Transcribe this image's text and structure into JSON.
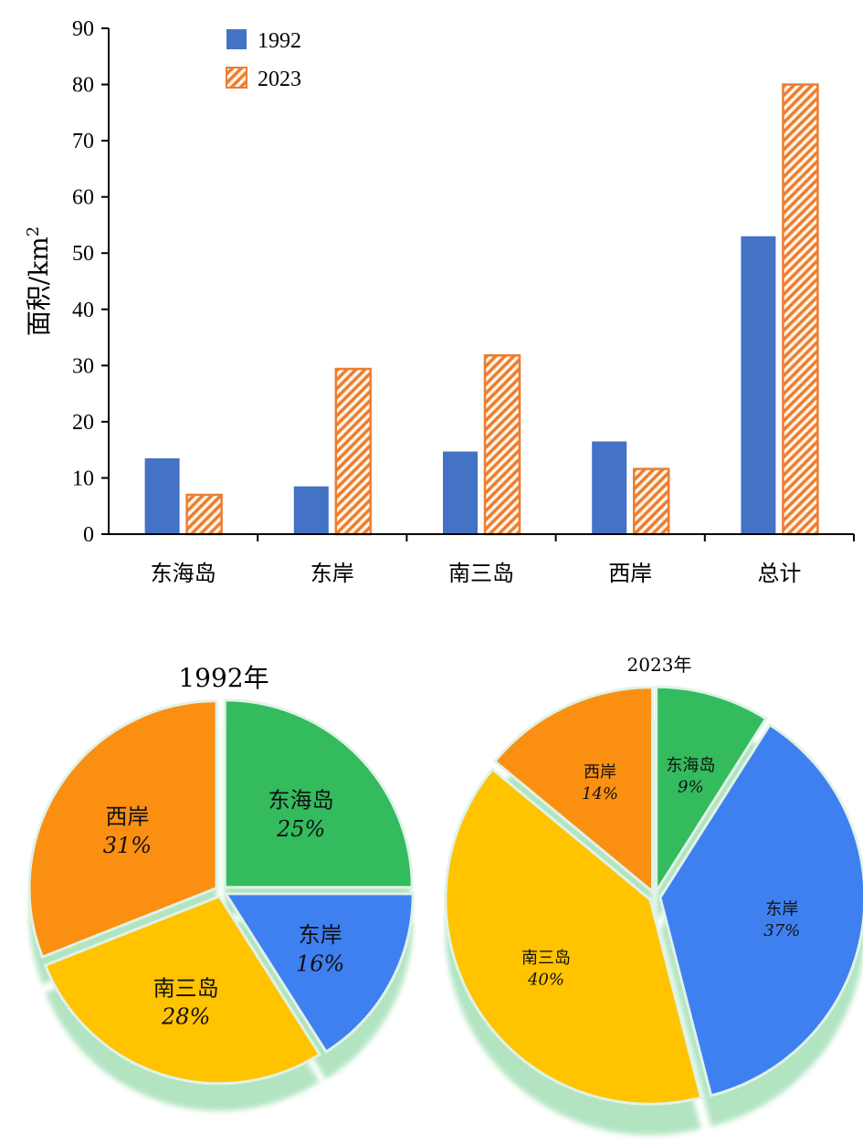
{
  "chart_data": [
    {
      "type": "bar",
      "categories": [
        "东海岛",
        "东岸",
        "南三岛",
        "西岸",
        "总计"
      ],
      "series": [
        {
          "name": "1992",
          "values": [
            13.5,
            8.5,
            14.7,
            16.5,
            53.0
          ],
          "color": "#4472c4",
          "pattern": "solid"
        },
        {
          "name": "2023",
          "values": [
            7.0,
            29.4,
            31.8,
            11.6,
            80.0
          ],
          "color": "#ed7d31",
          "pattern": "diagonal-hatch"
        }
      ],
      "ylabel": "面积/km²",
      "ylabel_main": "面积/km",
      "ylabel_sup": "2",
      "xlabel": "",
      "ylim": [
        0,
        90
      ],
      "yticks": [
        "0",
        "10",
        "20",
        "30",
        "40",
        "50",
        "60",
        "70",
        "80",
        "90"
      ],
      "legend_position": "top-left",
      "grid": false
    },
    {
      "type": "pie",
      "title": "1992年",
      "labels": [
        "东海岛",
        "东岸",
        "南三岛",
        "西岸"
      ],
      "values": [
        25,
        16,
        28,
        31
      ],
      "value_labels": [
        "25%",
        "16%",
        "28%",
        "31%"
      ],
      "colors": [
        "#33bb5e",
        "#3f80f0",
        "#ffc300",
        "#fb8f12"
      ],
      "start": "12 o'clock",
      "direction": "clockwise",
      "style": "exploded-3d"
    },
    {
      "type": "pie",
      "title": "2023年",
      "labels": [
        "东海岛",
        "东岸",
        "南三岛",
        "西岸"
      ],
      "values": [
        9,
        37,
        40,
        14
      ],
      "value_labels": [
        "9%",
        "37%",
        "40%",
        "14%"
      ],
      "colors": [
        "#33bb5e",
        "#3f80f0",
        "#ffc300",
        "#fb8f12"
      ],
      "start": "12 o'clock",
      "direction": "clockwise",
      "style": "exploded-3d"
    }
  ]
}
